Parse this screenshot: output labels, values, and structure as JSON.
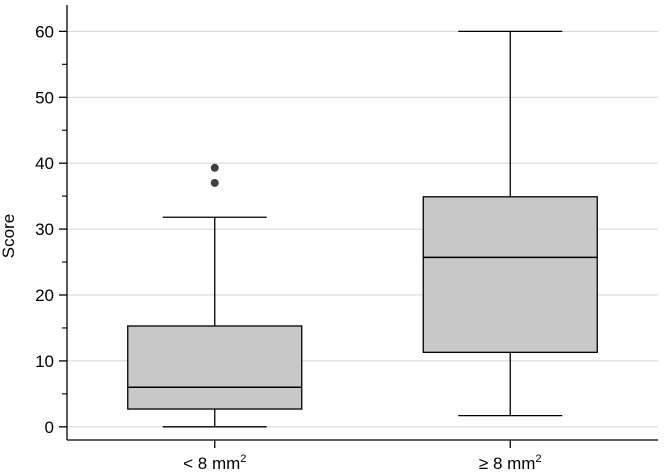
{
  "chart_data": {
    "type": "box",
    "ylabel": "Score",
    "ylim": [
      -2,
      64
    ],
    "yticks": [
      0,
      10,
      20,
      30,
      40,
      50,
      60
    ],
    "grid": "horizontal",
    "categories": [
      {
        "label": "< 8 mm",
        "sup": "2"
      },
      {
        "label": "≥ 8 mm",
        "sup": "2"
      }
    ],
    "boxes": [
      {
        "whisker_low": 0,
        "q1": 2.7,
        "median": 6,
        "q3": 15.3,
        "whisker_high": 31.8,
        "outliers": [
          37,
          39.3
        ]
      },
      {
        "whisker_low": 1.7,
        "q1": 11.3,
        "median": 25.7,
        "q3": 34.9,
        "whisker_high": 60,
        "outliers": []
      }
    ],
    "colors": {
      "box_fill": "#c8c8c8",
      "stroke": "#000000",
      "grid": "#d4d4d4",
      "outlier": "#404040"
    }
  }
}
